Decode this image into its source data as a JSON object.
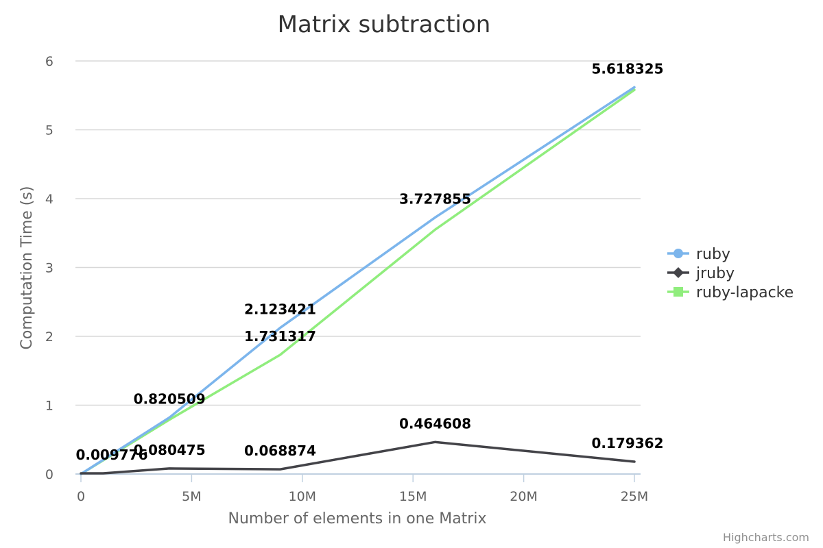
{
  "chart_data": {
    "type": "line",
    "title": "Matrix subtraction",
    "xlabel": "Number of elements in one Matrix",
    "ylabel": "Computation Time (s)",
    "xlim": [
      0,
      25000000
    ],
    "ylim": [
      0,
      6
    ],
    "x_ticks": [
      {
        "value": 0,
        "label": "0"
      },
      {
        "value": 5000000,
        "label": "5M"
      },
      {
        "value": 10000000,
        "label": "10M"
      },
      {
        "value": 15000000,
        "label": "15M"
      },
      {
        "value": 20000000,
        "label": "20M"
      },
      {
        "value": 25000000,
        "label": "25M"
      }
    ],
    "y_ticks": [
      {
        "value": 0,
        "label": "0"
      },
      {
        "value": 1,
        "label": "1"
      },
      {
        "value": 2,
        "label": "2"
      },
      {
        "value": 3,
        "label": "3"
      },
      {
        "value": 4,
        "label": "4"
      },
      {
        "value": 5,
        "label": "5"
      },
      {
        "value": 6,
        "label": "6"
      }
    ],
    "grid": true,
    "legend_position": "right",
    "series": [
      {
        "name": "ruby",
        "color": "#7cb5ec",
        "marker": "circle",
        "points": [
          {
            "x": 0,
            "y": 0.0,
            "label": ""
          },
          {
            "x": 4000000,
            "y": 0.820509,
            "label": "0.820509"
          },
          {
            "x": 9000000,
            "y": 2.123421,
            "label": "2.123421"
          },
          {
            "x": 16000000,
            "y": 3.727855,
            "label": "3.727855"
          },
          {
            "x": 25000000,
            "y": 5.618325,
            "label": "5.618325"
          }
        ]
      },
      {
        "name": "jruby",
        "color": "#434348",
        "marker": "diamond",
        "points": [
          {
            "x": 0,
            "y": 0.009776,
            "label": "0.009776"
          },
          {
            "x": 1000000,
            "y": 0.009776,
            "label": ""
          },
          {
            "x": 4000000,
            "y": 0.080475,
            "label": "0.080475"
          },
          {
            "x": 9000000,
            "y": 0.068874,
            "label": "0.068874"
          },
          {
            "x": 16000000,
            "y": 0.464608,
            "label": "0.464608"
          },
          {
            "x": 25000000,
            "y": 0.179362,
            "label": "0.179362"
          }
        ]
      },
      {
        "name": "ruby-lapacke",
        "color": "#90ed7d",
        "marker": "square",
        "points": [
          {
            "x": 0,
            "y": 0.0,
            "label": ""
          },
          {
            "x": 4000000,
            "y": 0.79,
            "label": ""
          },
          {
            "x": 9000000,
            "y": 1.731317,
            "label": "1.731317"
          },
          {
            "x": 16000000,
            "y": 3.55,
            "label": ""
          },
          {
            "x": 25000000,
            "y": 5.58,
            "label": ""
          }
        ]
      }
    ]
  },
  "credits": "Highcharts.com"
}
